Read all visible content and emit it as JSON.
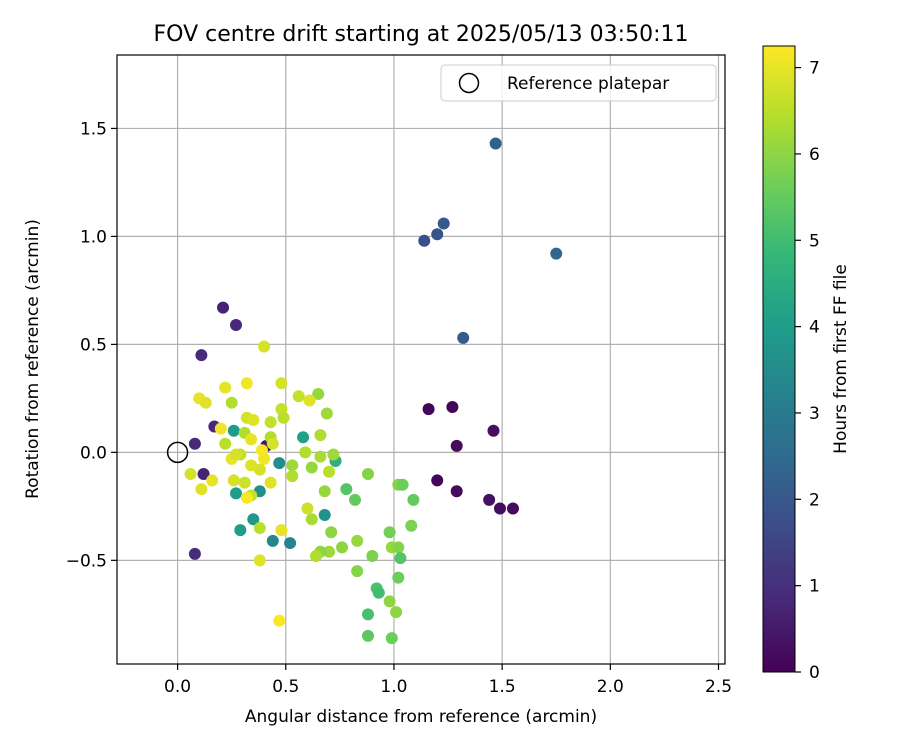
{
  "chart_data": {
    "type": "scatter",
    "title": "FOV centre drift starting at 2025/05/13 03:50:11",
    "xlabel": "Angular distance from reference (arcmin)",
    "ylabel": "Rotation from reference (arcmin)",
    "xlim": [
      -0.28,
      2.53
    ],
    "ylim": [
      -0.98,
      1.84
    ],
    "xticks": [
      0.0,
      0.5,
      1.0,
      1.5,
      2.0,
      2.5
    ],
    "xtick_labels": [
      "0.0",
      "0.5",
      "1.0",
      "1.5",
      "2.0",
      "2.5"
    ],
    "yticks": [
      -0.5,
      0.0,
      0.5,
      1.0,
      1.5
    ],
    "ytick_labels": [
      "−0.5",
      "0.0",
      "0.5",
      "1.0",
      "1.5"
    ],
    "grid": true,
    "legend": {
      "position": "top-right",
      "entries": [
        "Reference platepar"
      ]
    },
    "reference_point": {
      "x": 0.0,
      "y": 0.0,
      "label": "Reference platepar"
    },
    "colorbar": {
      "label": "Hours from first FF file",
      "range": [
        0,
        7.25
      ],
      "ticks": [
        0,
        1,
        2,
        3,
        4,
        5,
        6,
        7
      ],
      "tick_labels": [
        "0",
        "1",
        "2",
        "3",
        "4",
        "5",
        "6",
        "7"
      ],
      "colormap": "viridis",
      "colors": [
        "#440154",
        "#482878",
        "#3e4989",
        "#31688e",
        "#26828e",
        "#1f9e89",
        "#35b779",
        "#6ece58",
        "#b5de2b",
        "#fde725"
      ]
    },
    "points": [
      {
        "x": 0.21,
        "y": 0.67,
        "t": 0.7
      },
      {
        "x": 0.27,
        "y": 0.59,
        "t": 0.8
      },
      {
        "x": 0.11,
        "y": 0.45,
        "t": 0.9
      },
      {
        "x": 0.08,
        "y": 0.04,
        "t": 0.8
      },
      {
        "x": 0.17,
        "y": 0.12,
        "t": 0.8
      },
      {
        "x": 0.12,
        "y": -0.1,
        "t": 0.7
      },
      {
        "x": 0.08,
        "y": -0.47,
        "t": 0.9
      },
      {
        "x": 0.41,
        "y": 0.03,
        "t": 0.5
      },
      {
        "x": 1.16,
        "y": 0.2,
        "t": 0.1
      },
      {
        "x": 1.27,
        "y": 0.21,
        "t": 0.1
      },
      {
        "x": 1.46,
        "y": 0.1,
        "t": 0.3
      },
      {
        "x": 1.29,
        "y": 0.03,
        "t": 0.2
      },
      {
        "x": 1.2,
        "y": -0.13,
        "t": 0.1
      },
      {
        "x": 1.29,
        "y": -0.18,
        "t": 0.2
      },
      {
        "x": 1.44,
        "y": -0.22,
        "t": 0.3
      },
      {
        "x": 1.49,
        "y": -0.26,
        "t": 0.2
      },
      {
        "x": 1.55,
        "y": -0.26,
        "t": 0.2
      },
      {
        "x": 1.47,
        "y": 1.43,
        "t": 2.2
      },
      {
        "x": 1.14,
        "y": 0.98,
        "t": 1.8
      },
      {
        "x": 1.2,
        "y": 1.01,
        "t": 1.9
      },
      {
        "x": 1.23,
        "y": 1.06,
        "t": 2.0
      },
      {
        "x": 1.75,
        "y": 0.92,
        "t": 2.4
      },
      {
        "x": 1.32,
        "y": 0.53,
        "t": 2.1
      },
      {
        "x": 0.26,
        "y": 0.1,
        "t": 3.9
      },
      {
        "x": 0.27,
        "y": -0.19,
        "t": 4.0
      },
      {
        "x": 0.29,
        "y": -0.36,
        "t": 4.0
      },
      {
        "x": 0.35,
        "y": -0.31,
        "t": 3.8
      },
      {
        "x": 0.38,
        "y": -0.18,
        "t": 3.6
      },
      {
        "x": 0.44,
        "y": -0.41,
        "t": 3.4
      },
      {
        "x": 0.47,
        "y": -0.05,
        "t": 3.5
      },
      {
        "x": 0.52,
        "y": -0.42,
        "t": 3.3
      },
      {
        "x": 0.58,
        "y": 0.07,
        "t": 4.1
      },
      {
        "x": 0.68,
        "y": -0.29,
        "t": 3.7
      },
      {
        "x": 0.73,
        "y": -0.04,
        "t": 4.6
      },
      {
        "x": 0.78,
        "y": -0.17,
        "t": 5.3
      },
      {
        "x": 0.82,
        "y": -0.22,
        "t": 5.5
      },
      {
        "x": 0.88,
        "y": -0.1,
        "t": 5.9
      },
      {
        "x": 0.9,
        "y": -0.48,
        "t": 5.8
      },
      {
        "x": 0.92,
        "y": -0.63,
        "t": 5.2
      },
      {
        "x": 0.93,
        "y": -0.65,
        "t": 5.0
      },
      {
        "x": 0.88,
        "y": -0.75,
        "t": 5.1
      },
      {
        "x": 0.88,
        "y": -0.85,
        "t": 5.4
      },
      {
        "x": 0.99,
        "y": -0.86,
        "t": 5.6
      },
      {
        "x": 0.98,
        "y": -0.69,
        "t": 6.0
      },
      {
        "x": 1.01,
        "y": -0.74,
        "t": 6.0
      },
      {
        "x": 0.98,
        "y": -0.37,
        "t": 5.7
      },
      {
        "x": 0.99,
        "y": -0.44,
        "t": 6.1
      },
      {
        "x": 1.02,
        "y": -0.44,
        "t": 5.9
      },
      {
        "x": 1.02,
        "y": -0.58,
        "t": 5.6
      },
      {
        "x": 1.03,
        "y": -0.49,
        "t": 5.3
      },
      {
        "x": 1.02,
        "y": -0.15,
        "t": 5.9
      },
      {
        "x": 1.04,
        "y": -0.15,
        "t": 5.6
      },
      {
        "x": 1.08,
        "y": -0.34,
        "t": 5.8
      },
      {
        "x": 1.09,
        "y": -0.22,
        "t": 5.5
      },
      {
        "x": 0.83,
        "y": -0.41,
        "t": 6.1
      },
      {
        "x": 0.83,
        "y": -0.55,
        "t": 5.9
      },
      {
        "x": 0.76,
        "y": -0.44,
        "t": 6.0
      },
      {
        "x": 0.71,
        "y": -0.37,
        "t": 6.0
      },
      {
        "x": 0.7,
        "y": -0.46,
        "t": 6.2
      },
      {
        "x": 0.66,
        "y": -0.46,
        "t": 6.0
      },
      {
        "x": 0.64,
        "y": -0.48,
        "t": 6.4
      },
      {
        "x": 0.68,
        "y": -0.18,
        "t": 6.1
      },
      {
        "x": 0.62,
        "y": -0.31,
        "t": 6.3
      },
      {
        "x": 0.6,
        "y": -0.26,
        "t": 6.7
      },
      {
        "x": 0.62,
        "y": -0.07,
        "t": 6.1
      },
      {
        "x": 0.66,
        "y": -0.02,
        "t": 6.3
      },
      {
        "x": 0.7,
        "y": -0.09,
        "t": 6.5
      },
      {
        "x": 0.72,
        "y": -0.01,
        "t": 6.2
      },
      {
        "x": 0.66,
        "y": 0.08,
        "t": 6.4
      },
      {
        "x": 0.69,
        "y": 0.18,
        "t": 6.2
      },
      {
        "x": 0.65,
        "y": 0.27,
        "t": 6.1
      },
      {
        "x": 0.61,
        "y": 0.24,
        "t": 6.9
      },
      {
        "x": 0.56,
        "y": 0.26,
        "t": 6.6
      },
      {
        "x": 0.59,
        "y": 0.0,
        "t": 6.4
      },
      {
        "x": 0.53,
        "y": -0.06,
        "t": 6.2
      },
      {
        "x": 0.53,
        "y": -0.11,
        "t": 6.4
      },
      {
        "x": 0.48,
        "y": 0.32,
        "t": 6.8
      },
      {
        "x": 0.48,
        "y": 0.2,
        "t": 6.6
      },
      {
        "x": 0.49,
        "y": 0.16,
        "t": 6.5
      },
      {
        "x": 0.43,
        "y": 0.14,
        "t": 6.6
      },
      {
        "x": 0.43,
        "y": 0.07,
        "t": 6.4
      },
      {
        "x": 0.44,
        "y": 0.04,
        "t": 6.8
      },
      {
        "x": 0.4,
        "y": 0.49,
        "t": 6.8
      },
      {
        "x": 0.32,
        "y": 0.32,
        "t": 7.1
      },
      {
        "x": 0.22,
        "y": 0.3,
        "t": 7.0
      },
      {
        "x": 0.25,
        "y": 0.23,
        "t": 6.4
      },
      {
        "x": 0.1,
        "y": 0.25,
        "t": 7.0
      },
      {
        "x": 0.13,
        "y": 0.23,
        "t": 6.9
      },
      {
        "x": 0.2,
        "y": 0.11,
        "t": 7.1
      },
      {
        "x": 0.22,
        "y": 0.04,
        "t": 6.5
      },
      {
        "x": 0.31,
        "y": 0.09,
        "t": 6.4
      },
      {
        "x": 0.32,
        "y": 0.16,
        "t": 6.8
      },
      {
        "x": 0.35,
        "y": 0.15,
        "t": 6.9
      },
      {
        "x": 0.34,
        "y": 0.06,
        "t": 7.0
      },
      {
        "x": 0.29,
        "y": -0.01,
        "t": 6.6
      },
      {
        "x": 0.25,
        "y": -0.03,
        "t": 7.0
      },
      {
        "x": 0.27,
        "y": -0.01,
        "t": 6.8
      },
      {
        "x": 0.34,
        "y": -0.06,
        "t": 6.9
      },
      {
        "x": 0.38,
        "y": -0.08,
        "t": 6.8
      },
      {
        "x": 0.39,
        "y": 0.01,
        "t": 7.2
      },
      {
        "x": 0.4,
        "y": -0.03,
        "t": 7.1
      },
      {
        "x": 0.43,
        "y": -0.14,
        "t": 6.9
      },
      {
        "x": 0.31,
        "y": -0.14,
        "t": 6.7
      },
      {
        "x": 0.26,
        "y": -0.13,
        "t": 6.8
      },
      {
        "x": 0.34,
        "y": -0.2,
        "t": 6.6
      },
      {
        "x": 0.32,
        "y": -0.21,
        "t": 7.2
      },
      {
        "x": 0.16,
        "y": -0.13,
        "t": 7.0
      },
      {
        "x": 0.11,
        "y": -0.17,
        "t": 6.9
      },
      {
        "x": 0.06,
        "y": -0.1,
        "t": 6.8
      },
      {
        "x": 0.38,
        "y": -0.35,
        "t": 6.5
      },
      {
        "x": 0.48,
        "y": -0.36,
        "t": 7.0
      },
      {
        "x": 0.38,
        "y": -0.5,
        "t": 6.9
      },
      {
        "x": 0.47,
        "y": -0.78,
        "t": 7.2
      }
    ]
  }
}
